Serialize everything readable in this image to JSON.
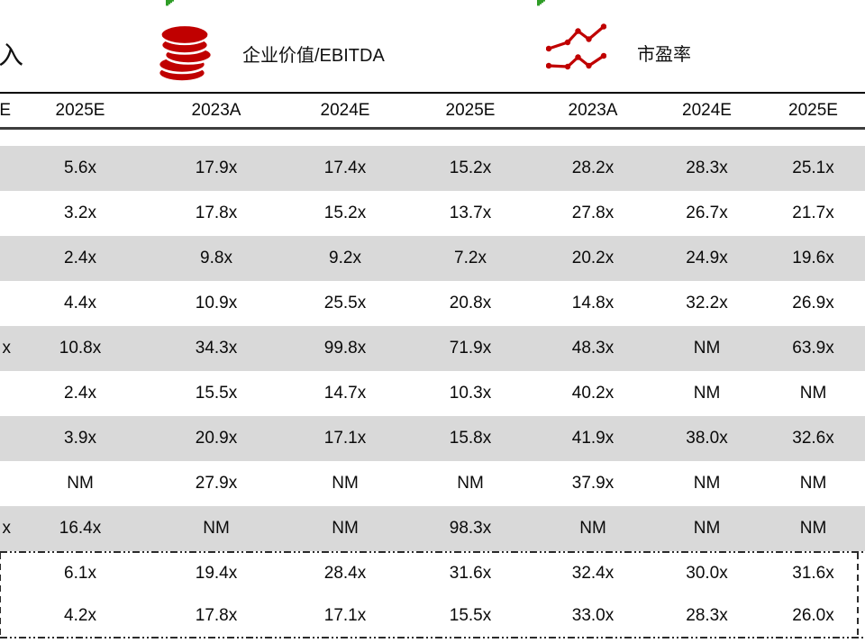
{
  "header_bar": {
    "clipped_label": "入",
    "metric_groups": [
      {
        "icon": "coin-stack-icon",
        "label": "企业价值/EBITDA"
      },
      {
        "icon": "trend-lines-icon",
        "label": "市盈率"
      }
    ]
  },
  "table": {
    "header": {
      "clipped_cell": "E",
      "columns": [
        "2025E",
        "2023A",
        "2024E",
        "2025E",
        "2023A",
        "2024E",
        "2025E"
      ]
    },
    "rows": [
      {
        "clipped": "",
        "values": [
          "5.6x",
          "17.9x",
          "17.4x",
          "15.2x",
          "28.2x",
          "28.3x",
          "25.1x"
        ]
      },
      {
        "clipped": "",
        "values": [
          "3.2x",
          "17.8x",
          "15.2x",
          "13.7x",
          "27.8x",
          "26.7x",
          "21.7x"
        ]
      },
      {
        "clipped": "",
        "values": [
          "2.4x",
          "9.8x",
          "9.2x",
          "7.2x",
          "20.2x",
          "24.9x",
          "19.6x"
        ]
      },
      {
        "clipped": "",
        "values": [
          "4.4x",
          "10.9x",
          "25.5x",
          "20.8x",
          "14.8x",
          "32.2x",
          "26.9x"
        ]
      },
      {
        "clipped": "x",
        "values": [
          "10.8x",
          "34.3x",
          "99.8x",
          "71.9x",
          "48.3x",
          "NM",
          "63.9x"
        ]
      },
      {
        "clipped": "",
        "values": [
          "2.4x",
          "15.5x",
          "14.7x",
          "10.3x",
          "40.2x",
          "NM",
          "NM"
        ]
      },
      {
        "clipped": "",
        "values": [
          "3.9x",
          "20.9x",
          "17.1x",
          "15.8x",
          "41.9x",
          "38.0x",
          "32.6x"
        ]
      },
      {
        "clipped": "",
        "values": [
          "NM",
          "27.9x",
          "NM",
          "NM",
          "37.9x",
          "NM",
          "NM"
        ]
      },
      {
        "clipped": "x",
        "values": [
          "16.4x",
          "NM",
          "NM",
          "98.3x",
          "NM",
          "NM",
          "NM"
        ]
      }
    ],
    "summary_rows": [
      {
        "clipped": "",
        "values": [
          "6.1x",
          "19.4x",
          "28.4x",
          "31.6x",
          "32.4x",
          "30.0x",
          "31.6x"
        ]
      },
      {
        "clipped": "",
        "values": [
          "4.2x",
          "17.8x",
          "17.1x",
          "15.5x",
          "33.0x",
          "28.3x",
          "26.0x"
        ]
      }
    ]
  },
  "colors": {
    "accent_red": "#C00000",
    "stripe_gray": "#D9D9D9",
    "marker_green": "#2F9D27",
    "text": "#000000"
  }
}
